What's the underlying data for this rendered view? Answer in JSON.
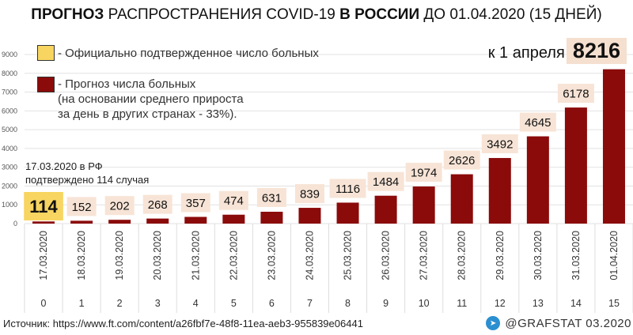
{
  "chart_data": {
    "type": "bar",
    "title_bold1": "ПРОГНОЗ",
    "title_mid": "РАСПРОСТРАНЕНИЯ COVID-19",
    "title_bold2": "В РОССИИ",
    "title_end": "ДО 01.04.2020 (15 ДНЕЙ)",
    "categories": [
      "17.03.2020",
      "18.03.2020",
      "19.03.2020",
      "20.03.2020",
      "21.03.2020",
      "22.03.2020",
      "23.03.2020",
      "24.03.2020",
      "25.03.2020",
      "26.03.2020",
      "27.03.2020",
      "28.03.2020",
      "29.03.2020",
      "30.03.2020",
      "31.03.2020",
      "01.04.2020"
    ],
    "day_index": [
      "0",
      "1",
      "2",
      "3",
      "4",
      "5",
      "6",
      "7",
      "8",
      "9",
      "10",
      "11",
      "12",
      "13",
      "14",
      "15"
    ],
    "values": [
      114,
      152,
      202,
      268,
      357,
      474,
      631,
      839,
      1116,
      1484,
      1974,
      2626,
      3492,
      4645,
      6178,
      8216
    ],
    "ylim": [
      0,
      9000
    ],
    "yticks": [
      "0",
      "1000",
      "2000",
      "3000",
      "4000",
      "5000",
      "6000",
      "7000",
      "8000",
      "9000"
    ],
    "legend": [
      {
        "label": "- Официально подтвержденное число больных",
        "color": "#f7d560"
      },
      {
        "label": "- Прогноз числа больных",
        "note1": "(на основании среднего прироста",
        "note2": "за день в других странах - 33%).",
        "color": "#8b0a0a"
      }
    ],
    "annotation_line1": "17.03.2020 в РФ",
    "annotation_line2": "подтверждено 114 случая",
    "april_label": "к 1 апреля -",
    "april_value": "8216",
    "grid": true
  },
  "footer": {
    "source": "Источник: https://www.ft.com/content/a26fbf7e-48f8-11ea-aeb3-955839e06441",
    "brand": "@GRAFSTAT 03.2020",
    "telegram_icon": "telegram-icon"
  }
}
